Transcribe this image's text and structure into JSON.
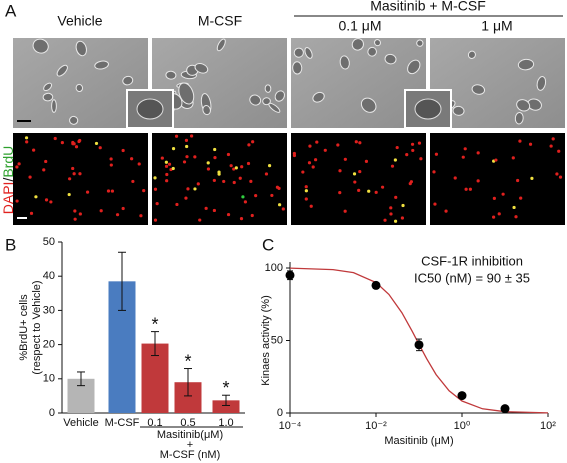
{
  "panel_a": {
    "label": "A",
    "columns": [
      "Vehicle",
      "M-CSF",
      "0.1 μM",
      "1 μM"
    ],
    "group": "Masitinib + M-CSF",
    "stain": [
      "DAPI",
      "/",
      "BrdU"
    ]
  },
  "chart_data": [
    {
      "label": "B",
      "type": "bar",
      "categories": [
        "Vehicle",
        "M-CSF",
        "0.1",
        "0.5",
        "1.0"
      ],
      "values": [
        10,
        38.5,
        20.3,
        9,
        3.7
      ],
      "errors": [
        2,
        8.5,
        3.5,
        4,
        1.5
      ],
      "colors": [
        "#b5b5b5",
        "#4a7cc0",
        "#c0393b",
        "#c0393b",
        "#c0393b"
      ],
      "annotations": [
        null,
        null,
        "*",
        "*",
        "*"
      ],
      "ylabel": [
        "%BrdU+ cells",
        "(respect to Vehicle)"
      ],
      "group_label": [
        "Masitinib(μM)",
        "+",
        "M-CSF (nM)"
      ],
      "ylim": [
        0,
        50
      ],
      "yticks": [
        0,
        10,
        20,
        30,
        40,
        50
      ]
    },
    {
      "label": "C",
      "type": "scatter",
      "x": [
        0.0001,
        0.01,
        0.1,
        1,
        10
      ],
      "values": [
        95,
        88,
        47,
        12,
        3
      ],
      "errors": [
        3,
        null,
        4,
        null,
        null
      ],
      "fit": {
        "color": "#c0393b",
        "x": [
          0.0001,
          0.001,
          0.003,
          0.01,
          0.02,
          0.04,
          0.07,
          0.1,
          0.15,
          0.25,
          0.5,
          1,
          3,
          10,
          100
        ],
        "values": [
          99.9,
          98.9,
          96.8,
          90,
          81.8,
          69.2,
          56.3,
          47.4,
          37.5,
          26.5,
          15.3,
          8.3,
          2.9,
          0.9,
          0.1
        ]
      },
      "annotations": [
        "CSF-1R inhibition",
        "IC50 (nM) = 90 ± 35"
      ],
      "xlabel": "Masitinib (μM)",
      "ylabel": "Kinaes activity (%)",
      "log_x": true,
      "xlim": [
        0.0001,
        100
      ],
      "xticks": [
        {
          "value": 0.0001,
          "label": "10⁻⁴"
        },
        {
          "value": 0.01,
          "label": "10⁻²"
        },
        {
          "value": 1,
          "label": "10⁰"
        },
        {
          "value": 100,
          "label": "10²"
        }
      ],
      "ylim": [
        0,
        100
      ],
      "yticks": [
        0,
        50,
        100
      ]
    }
  ]
}
